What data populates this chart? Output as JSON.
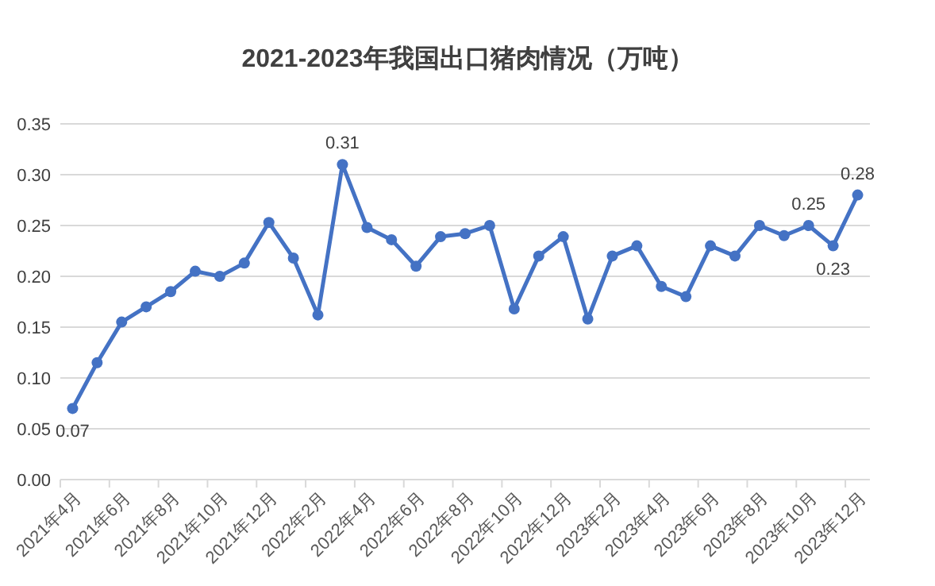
{
  "chart_data": {
    "type": "line",
    "title": "2021-2023年我国出口猪肉情况（万吨）",
    "categories": [
      "2021年4月",
      null,
      "2021年6月",
      null,
      "2021年8月",
      null,
      "2021年10月",
      null,
      "2021年12月",
      null,
      "2022年2月",
      null,
      "2022年4月",
      null,
      "2022年6月",
      null,
      "2022年8月",
      null,
      "2022年10月",
      null,
      "2022年12月",
      null,
      "2023年2月",
      null,
      "2023年4月",
      null,
      "2023年6月",
      null,
      "2023年8月",
      null,
      "2023年10月",
      null,
      "2023年12月"
    ],
    "series": [
      {
        "color": "#4472c4",
        "values": [
          0.07,
          0.115,
          0.155,
          0.17,
          0.185,
          0.205,
          0.2,
          0.213,
          0.253,
          0.218,
          0.162,
          0.31,
          0.248,
          0.236,
          0.21,
          0.239,
          0.242,
          0.25,
          0.168,
          0.22,
          0.239,
          0.158,
          0.22,
          0.23,
          0.19,
          0.18,
          0.23,
          0.22,
          0.25,
          0.24,
          0.25,
          0.23,
          0.28
        ],
        "value_labels": [
          "0.07",
          null,
          null,
          null,
          null,
          null,
          null,
          null,
          null,
          null,
          null,
          "0.31",
          null,
          null,
          null,
          null,
          null,
          null,
          null,
          null,
          null,
          null,
          null,
          null,
          null,
          null,
          null,
          null,
          null,
          null,
          "0.25",
          "0.23",
          "0.28"
        ]
      }
    ],
    "ylim": [
      0,
      0.35
    ],
    "yticks": [
      {
        "value": 0,
        "label": "0.00"
      },
      {
        "value": 0.05,
        "label": "0.05"
      },
      {
        "value": 0.1,
        "label": "0.10"
      },
      {
        "value": 0.15,
        "label": "0.15"
      },
      {
        "value": 0.2,
        "label": "0.20"
      },
      {
        "value": 0.25,
        "label": "0.25"
      },
      {
        "value": 0.3,
        "label": "0.30"
      },
      {
        "value": 0.35,
        "label": "0.35"
      }
    ],
    "grid": "y",
    "marker": "circle",
    "line_style": "solid"
  }
}
